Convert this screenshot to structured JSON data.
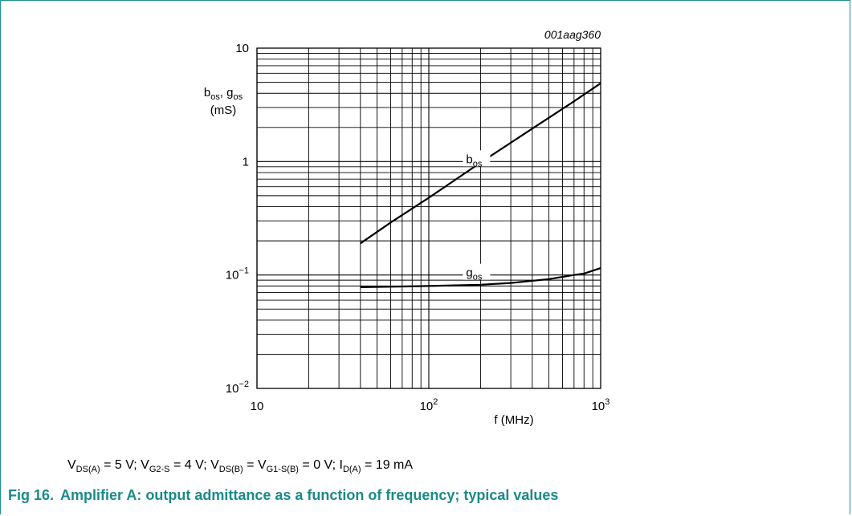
{
  "chart_data": {
    "type": "line",
    "code": "001aag360",
    "x_scale": "log",
    "y_scale": "log",
    "xlim": [
      10,
      1000
    ],
    "ylim": [
      0.01,
      10
    ],
    "grid": true,
    "xlabel": "f (MHz)",
    "ylabel": {
      "line1": [
        {
          "t": "b"
        },
        {
          "s": "os"
        },
        {
          "t": ", g"
        },
        {
          "s": "os"
        }
      ],
      "line2": "(mS)"
    },
    "x_ticks": [
      {
        "value": 10,
        "base": "10",
        "exp": ""
      },
      {
        "value": 100,
        "base": "10",
        "exp": "2"
      },
      {
        "value": 1000,
        "base": "10",
        "exp": "3"
      }
    ],
    "y_ticks": [
      {
        "value": 10,
        "base": "10",
        "exp": ""
      },
      {
        "value": 1,
        "base": "1",
        "exp": ""
      },
      {
        "value": 0.1,
        "base": "10",
        "exp": "−1"
      },
      {
        "value": 0.01,
        "base": "10",
        "exp": "−2"
      }
    ],
    "series": [
      {
        "name": "b",
        "sub": "os",
        "label_at": [
          200,
          1.0
        ],
        "x": [
          40,
          60,
          100,
          200,
          400,
          700,
          1000
        ],
        "y": [
          0.19,
          0.29,
          0.48,
          0.98,
          1.95,
          3.4,
          4.9
        ]
      },
      {
        "name": "g",
        "sub": "os",
        "label_at": [
          200,
          0.1
        ],
        "x": [
          40,
          100,
          200,
          300,
          500,
          700,
          800,
          1000
        ],
        "y": [
          0.078,
          0.08,
          0.082,
          0.085,
          0.092,
          0.1,
          0.103,
          0.115
        ]
      }
    ]
  },
  "conditions": [
    {
      "t": "V"
    },
    {
      "s": "DS(A)"
    },
    {
      "t": " = 5 V; V"
    },
    {
      "s": "G2-S"
    },
    {
      "t": " = 4 V; V"
    },
    {
      "s": "DS(B)"
    },
    {
      "t": " = V"
    },
    {
      "s": "G1-S(B)"
    },
    {
      "t": " = 0 V; I"
    },
    {
      "s": "D(A)"
    },
    {
      "t": " = 19 mA"
    }
  ],
  "caption": {
    "number": "Fig 16.",
    "text": "Amplifier A: output admittance as a function of frequency; typical values"
  },
  "colors": {
    "frame": "#1a8f8f",
    "caption": "#1a8a8a",
    "line": "#000000"
  }
}
